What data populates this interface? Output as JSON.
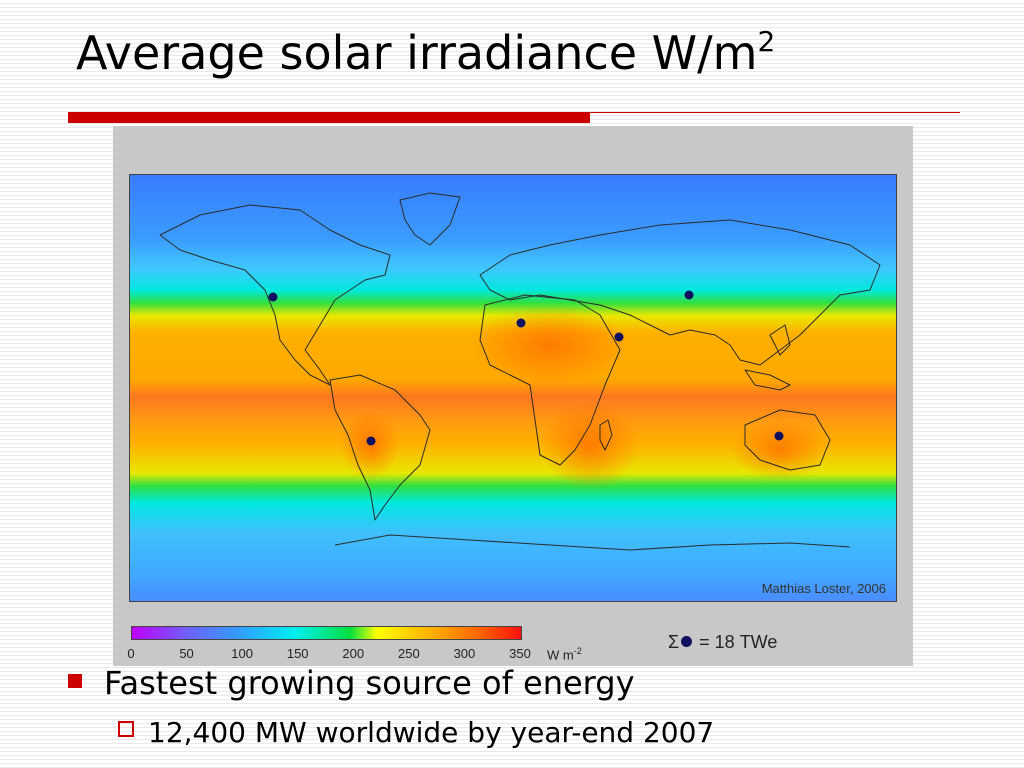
{
  "slide": {
    "title": "Average solar irradiance W/m",
    "title_superscript": "2",
    "accent_color": "#cc0000"
  },
  "map": {
    "credit": "Matthias Loster, 2006",
    "colorbar": {
      "min": 0,
      "max": 350,
      "ticks": [
        "0",
        "50",
        "100",
        "150",
        "200",
        "250",
        "300",
        "350"
      ],
      "unit": "W m",
      "unit_superscript": "-2",
      "colors": [
        "#c000ff",
        "#7060ff",
        "#30a0ff",
        "#00f0f0",
        "#00e040",
        "#ffff00",
        "#ffb000",
        "#ff6000",
        "#ff1010"
      ]
    },
    "sum_label_prefix": "Σ",
    "sum_label_suffix": "= 18 TWe",
    "marker_color": "#101060",
    "marker_count": 6
  },
  "bullets": [
    {
      "text": "Fastest growing source of energy",
      "sub": [
        {
          "text": "12,400 MW worldwide by year-end 2007"
        }
      ]
    }
  ]
}
